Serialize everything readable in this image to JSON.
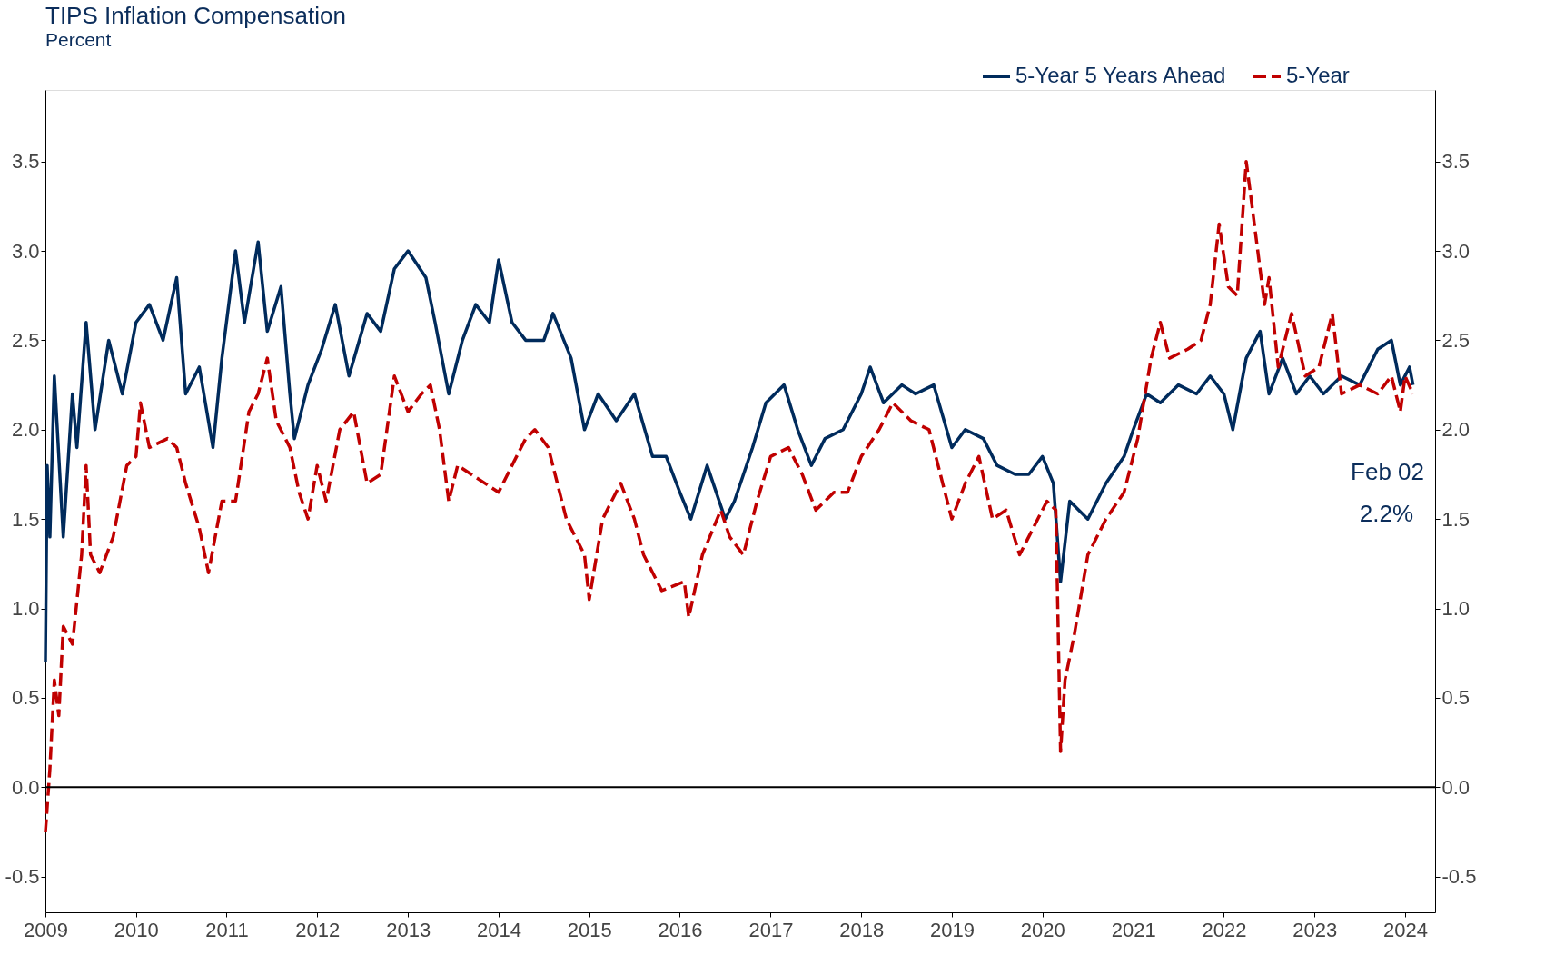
{
  "chart_data": {
    "type": "line",
    "title": "TIPS Inflation Compensation",
    "subtitle": "Percent",
    "xlim": [
      "2009-01-01",
      "2024-05-01"
    ],
    "xticks": [
      "2009",
      "2010",
      "2011",
      "2012",
      "2013",
      "2014",
      "2015",
      "2016",
      "2017",
      "2018",
      "2019",
      "2020",
      "2021",
      "2022",
      "2023",
      "2024"
    ],
    "ylim": [
      -0.7,
      3.9
    ],
    "yticks": [
      {
        "value": -0.5,
        "label": "-0.5"
      },
      {
        "value": 0,
        "label": "0.0"
      },
      {
        "value": 0.5,
        "label": "0.5"
      },
      {
        "value": 1,
        "label": "1.0"
      },
      {
        "value": 1.5,
        "label": "1.5"
      },
      {
        "value": 2,
        "label": "2.0"
      },
      {
        "value": 2.5,
        "label": "2.5"
      },
      {
        "value": 3,
        "label": "3.0"
      },
      {
        "value": 3.5,
        "label": "3.5"
      }
    ],
    "y2lim": [
      -0.7,
      3.9
    ],
    "y2ticks": [
      {
        "value": -0.5,
        "label": "-0.5"
      },
      {
        "value": 0,
        "label": "0.0"
      },
      {
        "value": 0.5,
        "label": "0.5"
      },
      {
        "value": 1,
        "label": "1.0"
      },
      {
        "value": 1.5,
        "label": "1.5"
      },
      {
        "value": 2,
        "label": "2.0"
      },
      {
        "value": 2.5,
        "label": "2.5"
      },
      {
        "value": 3,
        "label": "3.0"
      },
      {
        "value": 3.5,
        "label": "3.5"
      }
    ],
    "grid": false,
    "legend": "top right",
    "ref_lines": [
      {
        "axis": "y",
        "value": 0,
        "color": "#000000"
      }
    ],
    "annotations": [
      "Feb 02",
      "2.2%"
    ],
    "series": [
      {
        "name": "5-Year 5 Years Ahead",
        "color": "#002b5c",
        "line_style": "solid",
        "x": [
          "2009-01-01",
          "2009-01-08",
          "2009-01-19",
          "2009-02-06",
          "2009-03-14",
          "2009-04-20",
          "2009-05-08",
          "2009-06-14",
          "2009-07-20",
          "2009-09-13",
          "2009-11-07",
          "2010-01-01",
          "2010-02-24",
          "2010-04-20",
          "2010-06-14",
          "2010-07-20",
          "2010-09-13",
          "2010-11-07",
          "2010-12-13",
          "2011-02-06",
          "2011-03-14",
          "2011-05-08",
          "2011-06-14",
          "2011-08-08",
          "2011-09-13",
          "2011-10-01",
          "2011-11-25",
          "2012-01-19",
          "2012-03-14",
          "2012-05-08",
          "2012-07-20",
          "2012-09-13",
          "2012-11-07",
          "2013-01-01",
          "2013-03-14",
          "2013-04-20",
          "2013-06-14",
          "2013-08-08",
          "2013-10-01",
          "2013-11-25",
          "2014-01-01",
          "2014-02-24",
          "2014-04-20",
          "2014-07-02",
          "2014-08-08",
          "2014-10-20",
          "2014-12-13",
          "2015-02-06",
          "2015-04-20",
          "2015-07-02",
          "2015-09-13",
          "2015-11-07",
          "2016-01-01",
          "2016-02-14",
          "2016-04-20",
          "2016-07-02",
          "2016-08-08",
          "2016-10-20",
          "2016-12-13",
          "2017-02-24",
          "2017-04-20",
          "2017-06-14",
          "2017-08-08",
          "2017-10-20",
          "2018-01-01",
          "2018-02-06",
          "2018-04-01",
          "2018-06-14",
          "2018-08-08",
          "2018-10-20",
          "2019-01-01",
          "2019-02-24",
          "2019-05-08",
          "2019-07-02",
          "2019-09-13",
          "2019-11-07",
          "2020-01-01",
          "2020-02-14",
          "2020-03-14",
          "2020-04-20",
          "2020-07-02",
          "2020-09-13",
          "2020-11-25",
          "2021-01-01",
          "2021-02-24",
          "2021-04-20",
          "2021-07-02",
          "2021-09-13",
          "2021-11-07",
          "2022-01-01",
          "2022-02-06",
          "2022-04-01",
          "2022-05-27",
          "2022-07-02",
          "2022-08-26",
          "2022-10-20",
          "2022-12-13",
          "2023-02-06",
          "2023-04-20",
          "2023-07-02",
          "2023-09-13",
          "2023-11-07",
          "2023-12-13",
          "2024-01-19",
          "2024-02-02"
        ],
        "values": [
          0.7,
          1.8,
          1.4,
          2.3,
          1.4,
          2.2,
          1.9,
          2.6,
          2.0,
          2.5,
          2.2,
          2.6,
          2.7,
          2.5,
          2.85,
          2.2,
          2.35,
          1.9,
          2.4,
          3.0,
          2.6,
          3.05,
          2.55,
          2.8,
          2.2,
          1.95,
          2.25,
          2.45,
          2.7,
          2.3,
          2.65,
          2.55,
          2.9,
          3.0,
          2.85,
          2.6,
          2.2,
          2.5,
          2.7,
          2.6,
          2.95,
          2.6,
          2.5,
          2.5,
          2.65,
          2.4,
          2.0,
          2.2,
          2.05,
          2.2,
          1.85,
          1.85,
          1.65,
          1.5,
          1.8,
          1.5,
          1.6,
          1.9,
          2.15,
          2.25,
          2.0,
          1.8,
          1.95,
          2.0,
          2.2,
          2.35,
          2.15,
          2.25,
          2.2,
          2.25,
          1.9,
          2.0,
          1.95,
          1.8,
          1.75,
          1.75,
          1.85,
          1.7,
          1.15,
          1.6,
          1.5,
          1.7,
          1.85,
          2.0,
          2.2,
          2.15,
          2.25,
          2.2,
          2.3,
          2.2,
          2.0,
          2.4,
          2.55,
          2.2,
          2.4,
          2.2,
          2.3,
          2.2,
          2.3,
          2.25,
          2.45,
          2.5,
          2.25,
          2.35,
          2.25
        ]
      },
      {
        "name": "5-Year",
        "color": "#c00000",
        "line_style": "dashed",
        "x": [
          "2009-01-01",
          "2009-01-19",
          "2009-02-06",
          "2009-02-24",
          "2009-03-14",
          "2009-04-20",
          "2009-05-27",
          "2009-06-14",
          "2009-07-02",
          "2009-08-08",
          "2009-10-01",
          "2009-11-25",
          "2010-01-01",
          "2010-01-19",
          "2010-02-24",
          "2010-05-08",
          "2010-06-14",
          "2010-07-20",
          "2010-09-13",
          "2010-10-20",
          "2010-12-13",
          "2011-02-06",
          "2011-04-01",
          "2011-05-08",
          "2011-06-14",
          "2011-07-20",
          "2011-09-13",
          "2011-10-20",
          "2011-11-25",
          "2012-01-01",
          "2012-02-06",
          "2012-04-01",
          "2012-05-27",
          "2012-07-20",
          "2012-09-13",
          "2012-11-07",
          "2013-01-01",
          "2013-02-24",
          "2013-04-01",
          "2013-05-08",
          "2013-06-14",
          "2013-07-20",
          "2013-09-13",
          "2014-01-01",
          "2014-02-24",
          "2014-04-20",
          "2014-05-27",
          "2014-07-20",
          "2014-10-01",
          "2014-12-13",
          "2015-01-01",
          "2015-02-24",
          "2015-04-01",
          "2015-05-08",
          "2015-07-02",
          "2015-08-08",
          "2015-10-20",
          "2016-01-19",
          "2016-02-06",
          "2016-04-01",
          "2016-06-14",
          "2016-07-20",
          "2016-09-13",
          "2016-11-07",
          "2017-01-01",
          "2017-03-14",
          "2017-05-08",
          "2017-07-02",
          "2017-09-13",
          "2017-11-07",
          "2018-01-01",
          "2018-03-14",
          "2018-05-08",
          "2018-07-20",
          "2018-10-01",
          "2018-11-25",
          "2019-01-01",
          "2019-02-24",
          "2019-04-20",
          "2019-06-14",
          "2019-08-08",
          "2019-10-01",
          "2019-11-25",
          "2020-01-19",
          "2020-02-24",
          "2020-03-14",
          "2020-04-01",
          "2020-05-08",
          "2020-07-02",
          "2020-09-13",
          "2020-11-25",
          "2021-01-19",
          "2021-03-14",
          "2021-04-20",
          "2021-05-27",
          "2021-08-08",
          "2021-10-01",
          "2021-11-07",
          "2021-12-13",
          "2022-01-19",
          "2022-02-24",
          "2022-04-01",
          "2022-04-20",
          "2022-06-14",
          "2022-07-02",
          "2022-08-08",
          "2022-10-01",
          "2022-11-25",
          "2023-01-19",
          "2023-03-14",
          "2023-04-20",
          "2023-07-02",
          "2023-09-13",
          "2023-11-07",
          "2023-12-13",
          "2024-01-01",
          "2024-02-02"
        ],
        "values": [
          -0.25,
          0.1,
          0.6,
          0.4,
          0.9,
          0.8,
          1.3,
          1.8,
          1.3,
          1.2,
          1.4,
          1.8,
          1.85,
          2.15,
          1.9,
          1.95,
          1.9,
          1.7,
          1.45,
          1.2,
          1.6,
          1.6,
          2.1,
          2.2,
          2.4,
          2.05,
          1.9,
          1.65,
          1.5,
          1.8,
          1.6,
          2.0,
          2.1,
          1.7,
          1.75,
          2.3,
          2.1,
          2.2,
          2.25,
          2.0,
          1.6,
          1.8,
          1.75,
          1.65,
          1.8,
          1.95,
          2.0,
          1.9,
          1.5,
          1.3,
          1.05,
          1.5,
          1.6,
          1.7,
          1.5,
          1.3,
          1.1,
          1.15,
          0.95,
          1.3,
          1.55,
          1.4,
          1.3,
          1.6,
          1.85,
          1.9,
          1.75,
          1.55,
          1.65,
          1.65,
          1.85,
          2.0,
          2.15,
          2.05,
          2.0,
          1.7,
          1.5,
          1.7,
          1.85,
          1.5,
          1.55,
          1.3,
          1.45,
          1.6,
          1.55,
          0.2,
          0.6,
          0.85,
          1.3,
          1.5,
          1.65,
          1.95,
          2.4,
          2.6,
          2.4,
          2.45,
          2.5,
          2.7,
          3.15,
          2.8,
          2.75,
          3.5,
          3.3,
          2.7,
          2.85,
          2.35,
          2.65,
          2.3,
          2.35,
          2.65,
          2.2,
          2.25,
          2.2,
          2.3,
          2.1,
          2.3,
          2.2
        ]
      }
    ]
  }
}
